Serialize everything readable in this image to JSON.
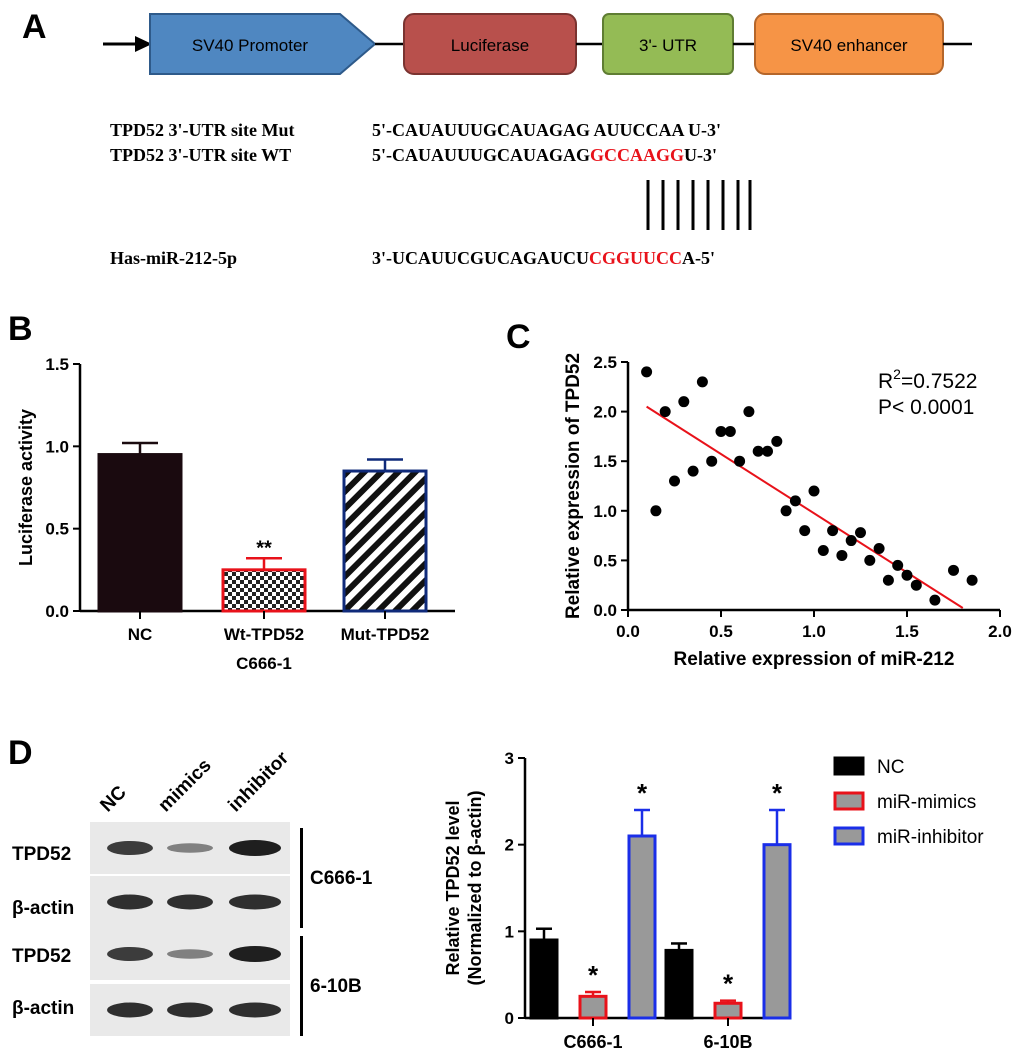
{
  "panels": {
    "a": "A",
    "b": "B",
    "c": "C",
    "d": "D"
  },
  "construct": {
    "promoter": "SV40 Promoter",
    "luciferase": "Luciferase",
    "utr": "3'- UTR",
    "enhancer": "SV40 enhancer",
    "colors": {
      "promoter": "#4f87c1",
      "luciferase": "#b8504c",
      "utr": "#94bb55",
      "enhancer": "#f69446"
    }
  },
  "sequences": {
    "mut_label": "TPD52 3'-UTR site Mut",
    "mut_seq": "5'-CAUAUUUGCAUAGAG AUUCCAA U-3'",
    "wt_label": "TPD52 3'-UTR site WT",
    "wt_seq_prefix": "5'-CAUAUUUGCAUAGAG",
    "wt_seq_site": "GCCAAGG",
    "wt_seq_suffix": "U-3'",
    "mir_label": "Has-miR-212-5p",
    "mir_seq_prefix": "3'-UCAUUCGUCAGAUCU",
    "mir_seq_site": "CGGUUCC",
    "mir_seq_suffix": "A-5'"
  },
  "chart_data": [
    {
      "type": "bar",
      "title": "",
      "xlabel": "C666-1",
      "ylabel": "Luciferase activity",
      "ylim": [
        0,
        1.5
      ],
      "yticks": [
        "0.0",
        "0.5",
        "1.0",
        "1.5"
      ],
      "categories": [
        "NC",
        "Wt-TPD52",
        "Mut-TPD52"
      ],
      "values": [
        0.95,
        0.25,
        0.85
      ],
      "errors": [
        0.07,
        0.07,
        0.07
      ],
      "annotations": [
        "",
        "**",
        ""
      ],
      "colors": {
        "nc": "#1a0a0f",
        "wt_edge": "#e8121a",
        "mut_edge": "#0f2a7a"
      }
    },
    {
      "type": "scatter",
      "xlabel": "Relative expression of miR-212",
      "ylabel": "Relative expression of TPD52",
      "xlim": [
        0,
        2.0
      ],
      "ylim": [
        0,
        2.5
      ],
      "xticks": [
        "0.0",
        "0.5",
        "1.0",
        "1.5",
        "2.0"
      ],
      "yticks": [
        "0.0",
        "0.5",
        "1.0",
        "1.5",
        "2.0",
        "2.5"
      ],
      "r2_label": "R",
      "r2_sup": "2",
      "r2_value": "=0.7522",
      "p_label": "P< 0.0001",
      "x": [
        0.1,
        0.15,
        0.2,
        0.25,
        0.3,
        0.35,
        0.4,
        0.45,
        0.5,
        0.55,
        0.6,
        0.65,
        0.7,
        0.75,
        0.8,
        0.85,
        0.9,
        0.95,
        1.0,
        1.05,
        1.1,
        1.15,
        1.2,
        1.25,
        1.3,
        1.35,
        1.4,
        1.45,
        1.5,
        1.55,
        1.65,
        1.75,
        1.85
      ],
      "y": [
        2.4,
        1.0,
        2.0,
        1.3,
        2.1,
        1.4,
        2.3,
        1.5,
        1.8,
        1.8,
        1.5,
        2.0,
        1.6,
        1.6,
        1.7,
        1.0,
        1.1,
        0.8,
        1.2,
        0.6,
        0.8,
        0.55,
        0.7,
        0.78,
        0.5,
        0.62,
        0.3,
        0.45,
        0.35,
        0.25,
        0.1,
        0.4,
        0.3
      ],
      "fit_line": {
        "x": [
          0.1,
          1.8
        ],
        "y": [
          2.05,
          0.02
        ]
      },
      "colors": {
        "line": "#e8121a",
        "points": "#000000"
      }
    },
    {
      "type": "bar",
      "ylabel_line1": "Relative TPD52 level",
      "ylabel_line2": "(Normalized to β-actin)",
      "ylim": [
        0,
        3
      ],
      "yticks": [
        "0",
        "1",
        "2",
        "3"
      ],
      "categories": [
        "C666-1",
        "6-10B"
      ],
      "series": [
        {
          "name": "NC",
          "values": [
            0.9,
            0.78
          ],
          "errors": [
            0.13,
            0.08
          ],
          "annotations": [
            "",
            ""
          ]
        },
        {
          "name": "miR-mimics",
          "values": [
            0.25,
            0.17
          ],
          "errors": [
            0.05,
            0.03
          ],
          "annotations": [
            "*",
            "*"
          ]
        },
        {
          "name": "miR-inhibitor",
          "values": [
            2.1,
            2.0
          ],
          "errors": [
            0.3,
            0.4
          ],
          "annotations": [
            "*",
            "*"
          ]
        }
      ],
      "legend_position": "right",
      "colors": {
        "nc": "#000000",
        "mimics_edge": "#e8121a",
        "inhibitor_edge": "#1a2ee8",
        "fill": "#999999"
      }
    }
  ],
  "blot": {
    "lanes": [
      "NC",
      "mimics",
      "inhibitor"
    ],
    "rows": [
      "TPD52",
      "β-actin",
      "TPD52",
      "β-actin"
    ],
    "cell_lines": [
      "C666-1",
      "6-10B"
    ],
    "tpd52_intensity": [
      0.8,
      0.35,
      1.0
    ],
    "actin_intensity": [
      0.9,
      0.9,
      0.9
    ]
  }
}
